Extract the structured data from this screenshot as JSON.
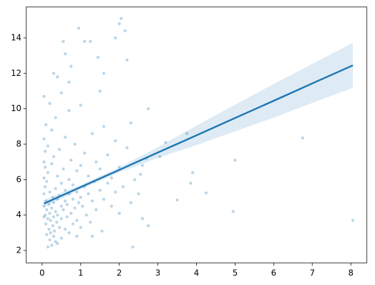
{
  "chart_data": {
    "type": "regplot",
    "points": {
      "color": "#1f77b4",
      "x": [
        0.05,
        0.05,
        0.05,
        0.05,
        0.05,
        0.05,
        0.05,
        0.08,
        0.08,
        0.08,
        0.08,
        0.1,
        0.1,
        0.1,
        0.12,
        0.12,
        0.12,
        0.15,
        0.15,
        0.15,
        0.15,
        0.18,
        0.18,
        0.2,
        0.2,
        0.2,
        0.2,
        0.22,
        0.22,
        0.25,
        0.25,
        0.25,
        0.25,
        0.28,
        0.28,
        0.3,
        0.3,
        0.3,
        0.3,
        0.32,
        0.35,
        0.35,
        0.35,
        0.35,
        0.38,
        0.4,
        0.4,
        0.4,
        0.4,
        0.45,
        0.45,
        0.45,
        0.5,
        0.5,
        0.5,
        0.5,
        0.5,
        0.55,
        0.55,
        0.6,
        0.6,
        0.6,
        0.6,
        0.65,
        0.65,
        0.7,
        0.7,
        0.7,
        0.7,
        0.75,
        0.75,
        0.8,
        0.8,
        0.8,
        0.85,
        0.85,
        0.9,
        0.9,
        0.9,
        0.95,
        1.0,
        1.0,
        1.0,
        1.0,
        1.05,
        1.1,
        1.1,
        1.15,
        1.2,
        1.2,
        1.25,
        1.3,
        1.3,
        1.35,
        1.4,
        1.4,
        1.5,
        1.5,
        1.55,
        1.6,
        1.6,
        1.7,
        1.7,
        1.8,
        1.8,
        1.9,
        1.9,
        2.0,
        2.0,
        2.1,
        2.2,
        2.3,
        2.4,
        2.5,
        2.6,
        2.6,
        8.05,
        6.75,
        5.0,
        4.95,
        4.25,
        3.9,
        3.85,
        3.5,
        3.75,
        3.2,
        3.05,
        2.75,
        2.05,
        2.0,
        2.15,
        1.9,
        0.95,
        0.55,
        0.6,
        1.25,
        1.1,
        0.3,
        0.4,
        0.75,
        1.45,
        1.6,
        2.2,
        0.7,
        1.5,
        2.3,
        2.7,
        2.55,
        2.75,
        2.35,
        1.3,
        0.9
      ],
      "y": [
        4.5,
        5.2,
        6.1,
        7.0,
        8.3,
        3.9,
        10.7,
        4.0,
        5.6,
        6.7,
        7.6,
        3.5,
        4.8,
        9.1,
        2.9,
        4.3,
        5.9,
        2.2,
        3.8,
        6.4,
        7.9,
        3.2,
        4.6,
        2.6,
        4.1,
        5.3,
        10.3,
        3.0,
        3.7,
        2.3,
        4.4,
        6.9,
        8.8,
        3.4,
        5.0,
        2.8,
        3.9,
        4.7,
        7.3,
        3.1,
        2.5,
        4.2,
        5.5,
        9.5,
        3.6,
        2.4,
        4.0,
        4.9,
        6.2,
        3.3,
        5.1,
        7.7,
        2.7,
        3.8,
        4.5,
        5.8,
        10.9,
        4.3,
        6.6,
        3.2,
        4.8,
        5.4,
        8.4,
        3.9,
        4.6,
        3.0,
        5.2,
        6.0,
        9.9,
        4.1,
        7.1,
        3.5,
        4.9,
        5.7,
        4.4,
        8.0,
        3.7,
        5.3,
        6.5,
        4.7,
        3.3,
        5.0,
        6.8,
        10.2,
        4.5,
        5.6,
        7.5,
        4.0,
        5.2,
        6.2,
        3.6,
        4.8,
        8.6,
        5.9,
        4.3,
        7.0,
        5.4,
        6.6,
        3.1,
        4.9,
        9.0,
        5.8,
        7.4,
        4.5,
        6.1,
        5.3,
        8.2,
        4.1,
        6.7,
        5.6,
        7.8,
        4.7,
        6.0,
        5.2,
        3.8,
        6.8,
        3.7,
        8.35,
        7.1,
        4.2,
        5.25,
        6.4,
        5.8,
        4.85,
        8.6,
        8.1,
        7.3,
        10.0,
        15.1,
        14.8,
        14.4,
        14.0,
        14.55,
        13.8,
        13.1,
        13.8,
        13.8,
        12.0,
        11.8,
        12.4,
        12.9,
        12.0,
        12.75,
        11.5,
        11.0,
        9.2,
        7.2,
        6.3,
        3.4,
        2.2,
        2.8,
        2.8
      ]
    },
    "regression": {
      "color": "#1f77b4",
      "x": [
        0.05,
        1,
        2,
        3,
        4,
        5,
        6,
        7,
        8.05
      ],
      "y": [
        4.65,
        5.58,
        6.55,
        7.53,
        8.5,
        9.48,
        10.45,
        11.43,
        12.45
      ],
      "lower": [
        4.45,
        5.46,
        6.4,
        7.23,
        7.95,
        8.73,
        9.5,
        10.33,
        11.18
      ],
      "upper": [
        4.85,
        5.7,
        6.7,
        7.83,
        9.05,
        10.23,
        11.4,
        12.53,
        13.72
      ]
    },
    "xlim": [
      -0.41,
      8.41
    ],
    "ylim": [
      1.3,
      15.75
    ],
    "xticks": [
      0,
      1,
      2,
      3,
      4,
      5,
      6,
      7,
      8
    ],
    "yticks": [
      2,
      4,
      6,
      8,
      10,
      12,
      14
    ]
  }
}
